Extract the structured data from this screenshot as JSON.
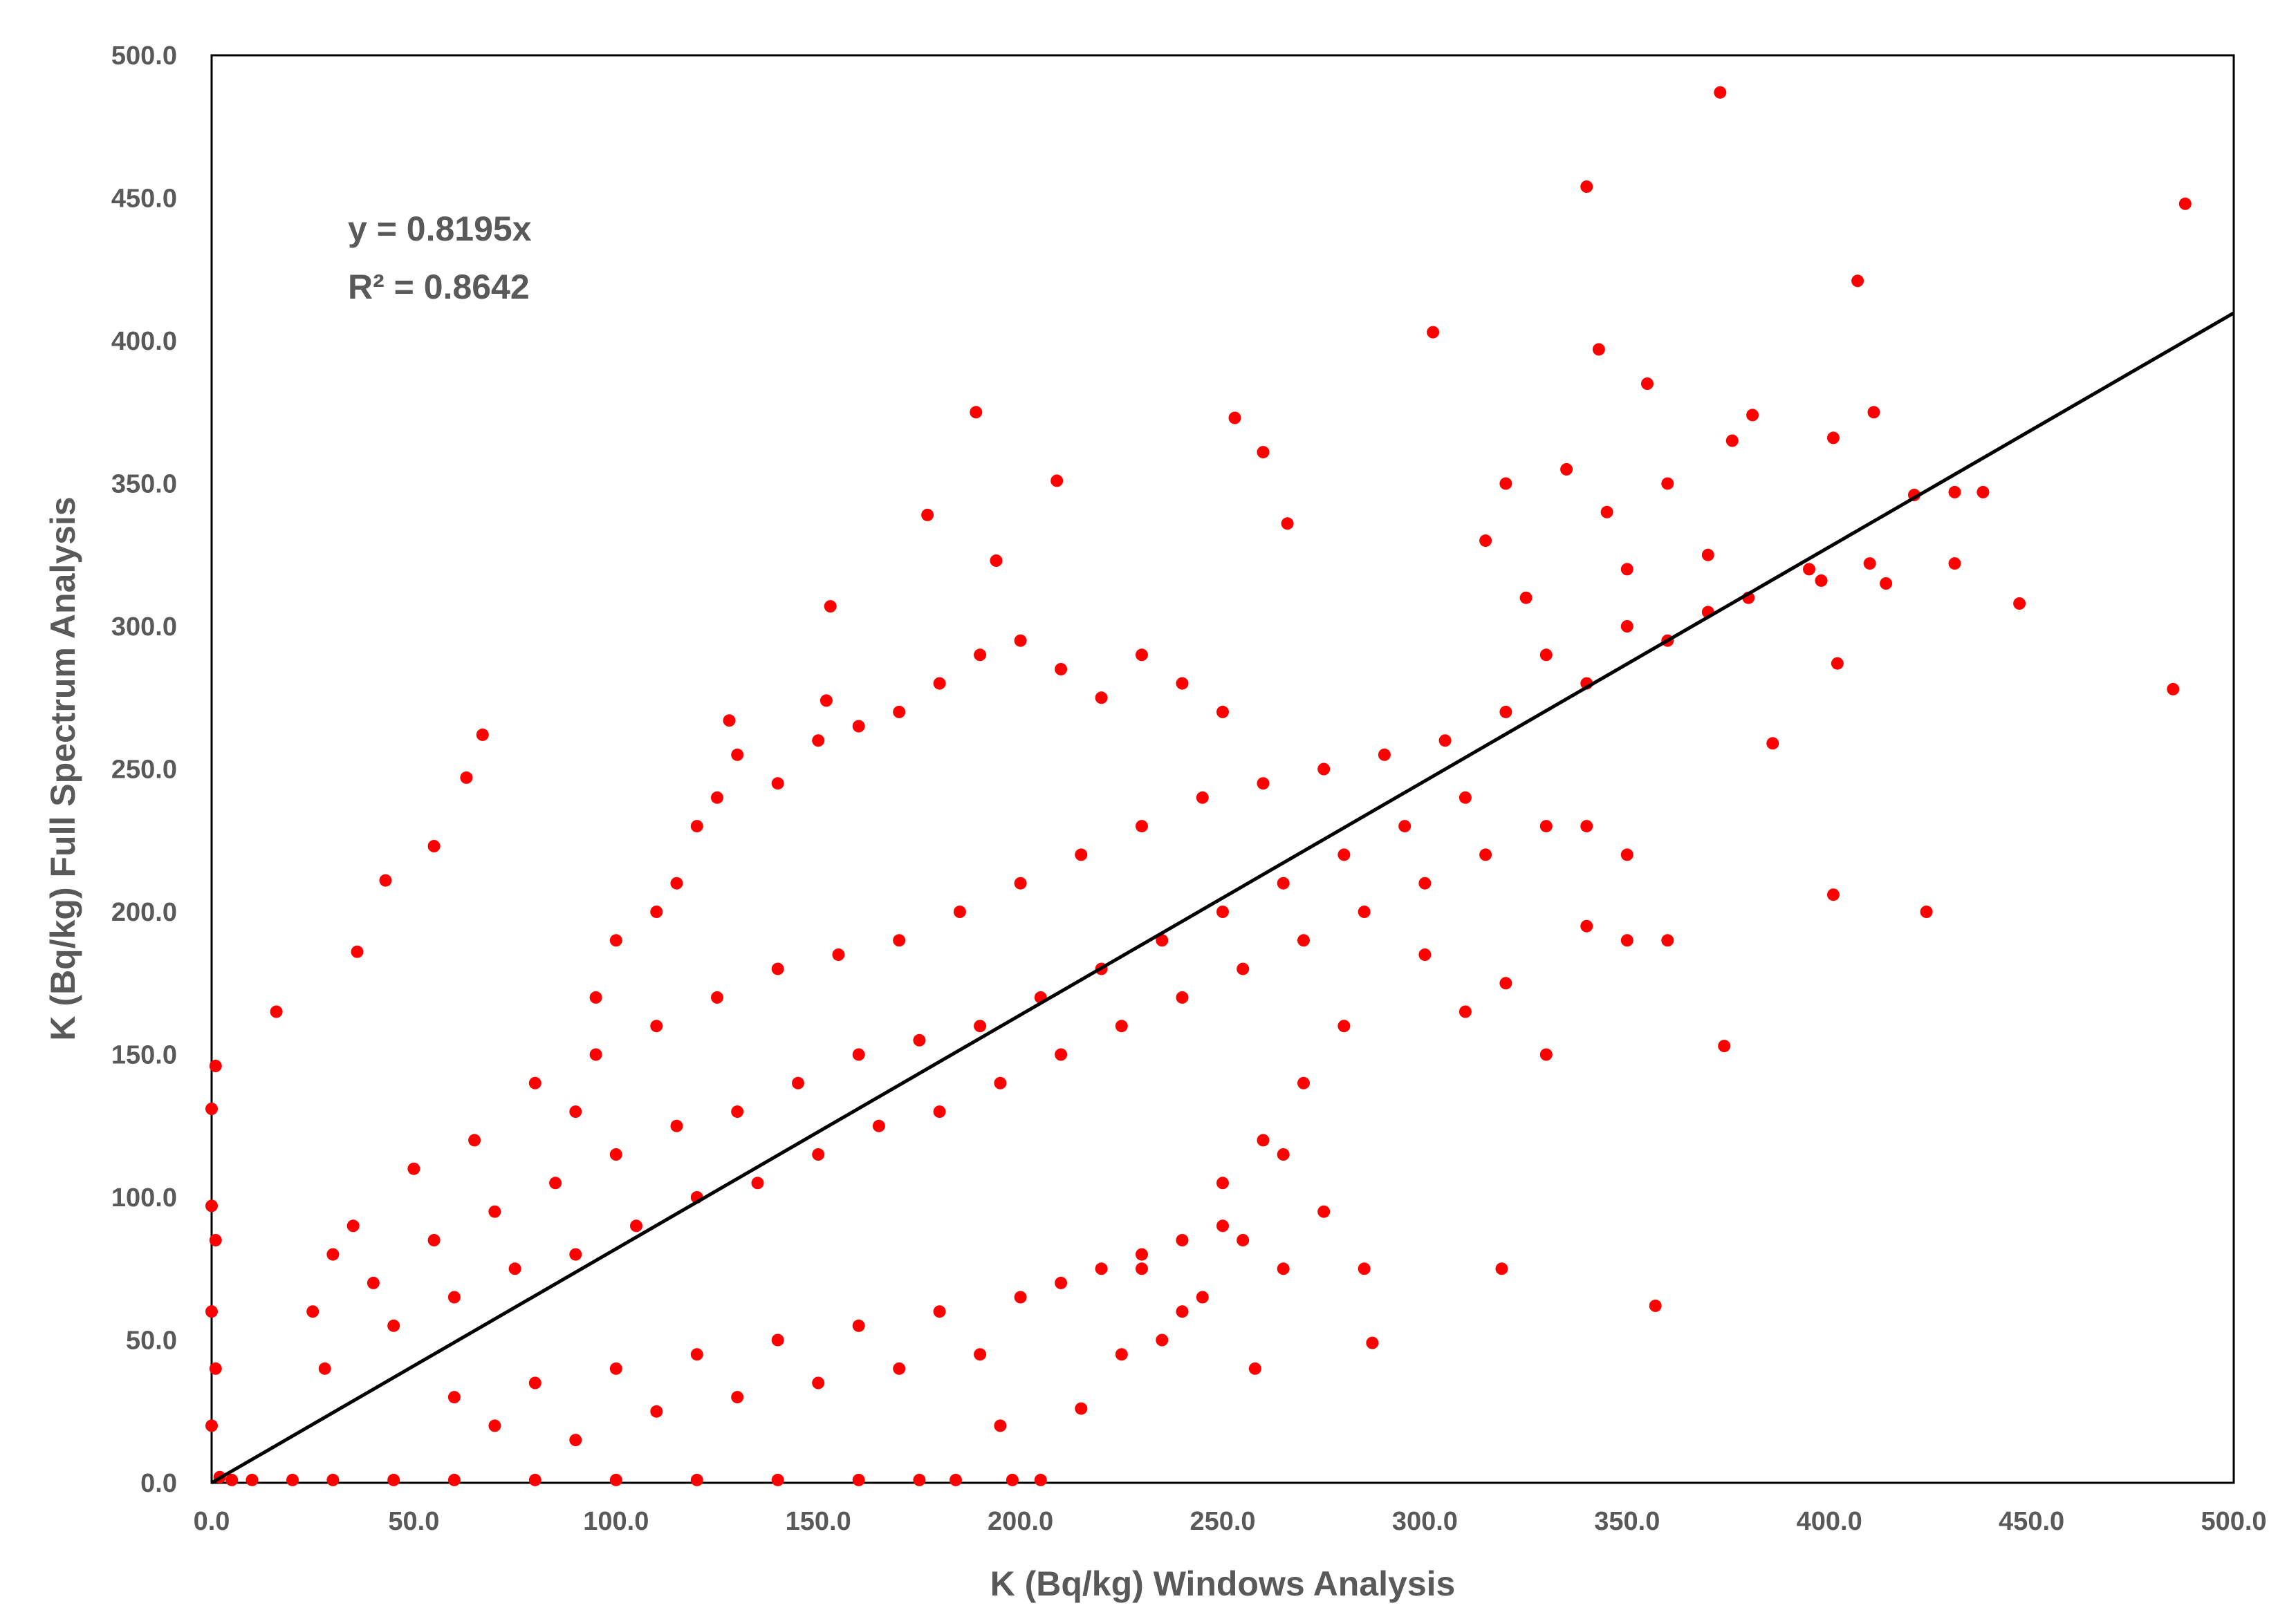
{
  "chart_data": {
    "type": "scatter",
    "xlabel": "K (Bq/kg) Windows Analysis",
    "ylabel": "K (Bq/kg) Full Spectrum Analysis",
    "xlim": [
      0,
      500
    ],
    "ylim": [
      0,
      500
    ],
    "x_ticks": [
      "0.0",
      "50.0",
      "100.0",
      "150.0",
      "200.0",
      "250.0",
      "300.0",
      "350.0",
      "400.0",
      "450.0",
      "500.0"
    ],
    "y_ticks": [
      "0.0",
      "50.0",
      "100.0",
      "150.0",
      "200.0",
      "250.0",
      "300.0",
      "350.0",
      "400.0",
      "450.0",
      "500.0"
    ],
    "grid": false,
    "legend": "none",
    "point_color": "#ff0000",
    "trendline": {
      "type": "linear-through-origin",
      "slope": 0.8195,
      "color": "#000000"
    },
    "equation_label": "y = 0.8195x",
    "r2_label": "R² = 0.8642",
    "series": [
      {
        "points": [
          [
            373,
            487
          ],
          [
            340,
            454
          ],
          [
            488,
            448
          ],
          [
            407,
            421
          ],
          [
            302,
            403
          ],
          [
            343,
            397
          ],
          [
            355,
            385
          ],
          [
            381,
            374
          ],
          [
            411,
            375
          ],
          [
            253,
            373
          ],
          [
            189,
            375
          ],
          [
            401,
            366
          ],
          [
            376,
            365
          ],
          [
            260,
            361
          ],
          [
            421,
            346
          ],
          [
            431,
            347
          ],
          [
            438,
            347
          ],
          [
            209,
            351
          ],
          [
            177,
            339
          ],
          [
            266,
            336
          ],
          [
            431,
            322
          ],
          [
            194,
            323
          ],
          [
            410,
            322
          ],
          [
            398,
            316
          ],
          [
            414,
            315
          ],
          [
            447,
            308
          ],
          [
            153,
            307
          ],
          [
            402,
            287
          ],
          [
            485,
            278
          ],
          [
            67,
            262
          ],
          [
            63,
            247
          ],
          [
            128,
            267
          ],
          [
            152,
            274
          ],
          [
            386,
            259
          ],
          [
            424,
            200
          ],
          [
            401,
            206
          ],
          [
            357,
            62
          ],
          [
            319,
            75
          ],
          [
            374,
            153
          ],
          [
            287,
            49
          ],
          [
            258,
            40
          ],
          [
            215,
            26
          ],
          [
            195,
            20
          ],
          [
            184,
            1
          ],
          [
            198,
            1
          ],
          [
            205,
            1
          ],
          [
            36,
            186
          ],
          [
            16,
            165
          ],
          [
            55,
            223
          ],
          [
            43,
            211
          ],
          [
            1,
            146
          ],
          [
            0,
            131
          ],
          [
            0,
            97
          ],
          [
            1,
            85
          ],
          [
            0,
            60
          ],
          [
            1,
            40
          ],
          [
            0,
            20
          ],
          [
            2,
            2
          ],
          [
            5,
            1
          ],
          [
            10,
            1
          ],
          [
            20,
            1
          ],
          [
            30,
            1
          ],
          [
            45,
            1
          ],
          [
            60,
            1
          ],
          [
            80,
            1
          ],
          [
            100,
            1
          ],
          [
            120,
            1
          ],
          [
            140,
            1
          ],
          [
            160,
            1
          ],
          [
            175,
            1
          ],
          [
            30,
            80
          ],
          [
            25,
            60
          ],
          [
            28,
            40
          ],
          [
            35,
            90
          ],
          [
            40,
            70
          ],
          [
            45,
            55
          ],
          [
            50,
            110
          ],
          [
            55,
            85
          ],
          [
            60,
            65
          ],
          [
            65,
            120
          ],
          [
            70,
            95
          ],
          [
            75,
            75
          ],
          [
            80,
            140
          ],
          [
            85,
            105
          ],
          [
            90,
            80
          ],
          [
            95,
            150
          ],
          [
            100,
            115
          ],
          [
            105,
            90
          ],
          [
            110,
            160
          ],
          [
            115,
            125
          ],
          [
            120,
            100
          ],
          [
            125,
            170
          ],
          [
            130,
            130
          ],
          [
            135,
            105
          ],
          [
            140,
            180
          ],
          [
            145,
            140
          ],
          [
            150,
            115
          ],
          [
            155,
            185
          ],
          [
            160,
            150
          ],
          [
            165,
            125
          ],
          [
            170,
            190
          ],
          [
            175,
            155
          ],
          [
            180,
            130
          ],
          [
            185,
            200
          ],
          [
            190,
            160
          ],
          [
            195,
            140
          ],
          [
            200,
            210
          ],
          [
            205,
            170
          ],
          [
            210,
            150
          ],
          [
            215,
            220
          ],
          [
            220,
            180
          ],
          [
            225,
            160
          ],
          [
            230,
            230
          ],
          [
            235,
            190
          ],
          [
            240,
            170
          ],
          [
            245,
            240
          ],
          [
            250,
            200
          ],
          [
            255,
            180
          ],
          [
            260,
            245
          ],
          [
            265,
            210
          ],
          [
            270,
            190
          ],
          [
            275,
            250
          ],
          [
            280,
            220
          ],
          [
            285,
            200
          ],
          [
            290,
            255
          ],
          [
            295,
            230
          ],
          [
            300,
            210
          ],
          [
            305,
            260
          ],
          [
            310,
            240
          ],
          [
            315,
            220
          ],
          [
            60,
            30
          ],
          [
            70,
            20
          ],
          [
            80,
            35
          ],
          [
            90,
            15
          ],
          [
            100,
            40
          ],
          [
            110,
            25
          ],
          [
            120,
            45
          ],
          [
            130,
            30
          ],
          [
            140,
            50
          ],
          [
            150,
            35
          ],
          [
            160,
            55
          ],
          [
            170,
            40
          ],
          [
            180,
            60
          ],
          [
            190,
            45
          ],
          [
            200,
            65
          ],
          [
            210,
            70
          ],
          [
            220,
            75
          ],
          [
            230,
            80
          ],
          [
            240,
            85
          ],
          [
            250,
            90
          ],
          [
            90,
            130
          ],
          [
            95,
            170
          ],
          [
            100,
            190
          ],
          [
            110,
            200
          ],
          [
            115,
            210
          ],
          [
            120,
            230
          ],
          [
            125,
            240
          ],
          [
            130,
            255
          ],
          [
            140,
            245
          ],
          [
            150,
            260
          ],
          [
            160,
            265
          ],
          [
            170,
            270
          ],
          [
            180,
            280
          ],
          [
            190,
            290
          ],
          [
            200,
            295
          ],
          [
            210,
            285
          ],
          [
            220,
            275
          ],
          [
            230,
            290
          ],
          [
            240,
            280
          ],
          [
            250,
            270
          ],
          [
            330,
            290
          ],
          [
            340,
            280
          ],
          [
            350,
            300
          ],
          [
            360,
            295
          ],
          [
            370,
            305
          ],
          [
            320,
            270
          ],
          [
            330,
            230
          ],
          [
            340,
            230
          ],
          [
            350,
            220
          ],
          [
            360,
            190
          ],
          [
            315,
            330
          ],
          [
            320,
            350
          ],
          [
            325,
            310
          ],
          [
            335,
            355
          ],
          [
            345,
            340
          ],
          [
            350,
            320
          ],
          [
            360,
            350
          ],
          [
            370,
            325
          ],
          [
            380,
            310
          ],
          [
            395,
            320
          ],
          [
            300,
            185
          ],
          [
            310,
            165
          ],
          [
            320,
            175
          ],
          [
            330,
            150
          ],
          [
            340,
            195
          ],
          [
            350,
            190
          ],
          [
            280,
            160
          ],
          [
            270,
            140
          ],
          [
            260,
            120
          ],
          [
            250,
            105
          ],
          [
            285,
            75
          ],
          [
            275,
            95
          ],
          [
            265,
            115
          ],
          [
            240,
            60
          ],
          [
            235,
            50
          ],
          [
            245,
            65
          ],
          [
            225,
            45
          ],
          [
            230,
            75
          ],
          [
            255,
            85
          ],
          [
            265,
            75
          ]
        ]
      }
    ]
  }
}
